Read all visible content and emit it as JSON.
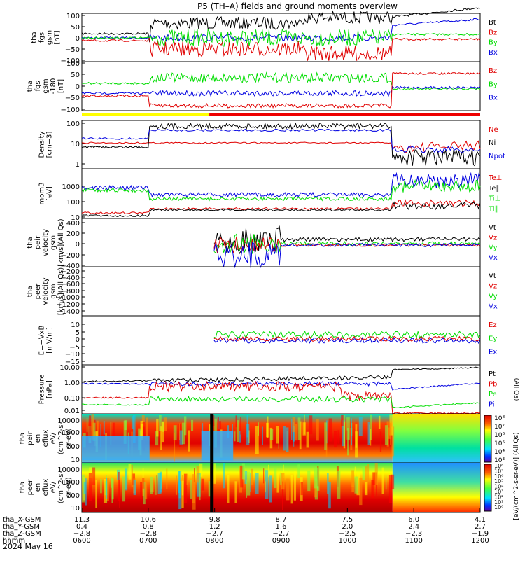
{
  "title": "P5 (TH–A) fields and ground moments overview",
  "date": "2024 May 16",
  "colors": {
    "black": "#000000",
    "red": "#e00000",
    "green": "#00dd00",
    "blue": "#0000e0",
    "yellow": "#ffff00",
    "orange": "#ff9900",
    "barRed": "#ee0000"
  },
  "chart_data": [
    {
      "type": "line",
      "id": "fgs",
      "ylabel": [
        "tha",
        "fgs",
        "gsm",
        "[nT]"
      ],
      "yticks": [
        "100",
        "50",
        "0",
        "−50",
        "−100"
      ],
      "ylim": [
        -100,
        100
      ],
      "legend": [
        {
          "label": "Bt",
          "color": "#000000"
        },
        {
          "label": "Bz",
          "color": "#e00000"
        },
        {
          "label": "By",
          "color": "#00dd00"
        },
        {
          "label": "Bx",
          "color": "#0000e0"
        }
      ]
    },
    {
      "type": "line",
      "id": "fgs180",
      "ylabel": [
        "tha",
        "fgs",
        "gsm",
        "-180",
        "[nT]"
      ],
      "yticks": [
        "100",
        "50",
        "0",
        "−50",
        "−100"
      ],
      "ylim": [
        -100,
        100
      ],
      "legend": [
        {
          "label": "Bz",
          "color": "#e00000"
        },
        {
          "label": "By",
          "color": "#00dd00"
        },
        {
          "label": "Bx",
          "color": "#0000e0"
        }
      ]
    },
    {
      "type": "line",
      "id": "density",
      "log": true,
      "ylabel": [
        "Density",
        "[cm−3]"
      ],
      "yticks": [
        "100",
        "10",
        "1"
      ],
      "legend": [
        {
          "label": "Ne",
          "color": "#e00000"
        },
        {
          "label": "Ni",
          "color": "#000000"
        },
        {
          "label": "Npot",
          "color": "#0000e0"
        }
      ]
    },
    {
      "type": "line",
      "id": "temp",
      "log": true,
      "ylabel": [
        "mom3",
        "[eV]"
      ],
      "yticks": [
        "1000",
        "100",
        "10"
      ],
      "legend": [
        {
          "label": "Te⊥",
          "color": "#e00000"
        },
        {
          "label": "Te∥",
          "color": "#000000"
        },
        {
          "label": "Ti⊥",
          "color": "#00dd00"
        },
        {
          "label": "Ti∥",
          "color": "#00dd00"
        }
      ]
    },
    {
      "type": "line",
      "id": "peir",
      "ylabel": [
        "tha",
        "peir",
        "velocity",
        "gsm",
        "[km/s](All Qs)"
      ],
      "yticks": [
        "400",
        "200",
        "0",
        "−200",
        "−400"
      ],
      "ylim": [
        -400,
        400
      ],
      "legend": [
        {
          "label": "Vt",
          "color": "#000000"
        },
        {
          "label": "Vz",
          "color": "#e00000"
        },
        {
          "label": "Vy",
          "color": "#00dd00"
        },
        {
          "label": "Vx",
          "color": "#0000e0"
        }
      ]
    },
    {
      "type": "line",
      "id": "peer",
      "ylabel": [
        "tha",
        "peer",
        "velocity",
        "gsm",
        "[km/s](All Qs)"
      ],
      "yticks": [
        "−200",
        "−400",
        "−600",
        "−800",
        "−1000",
        "−1200",
        "−1400"
      ],
      "ylim": [
        -1400,
        -200
      ],
      "legend": [
        {
          "label": "Vt",
          "color": "#000000"
        },
        {
          "label": "Vz",
          "color": "#e00000"
        },
        {
          "label": "Vy",
          "color": "#00dd00"
        },
        {
          "label": "Vx",
          "color": "#0000e0"
        }
      ]
    },
    {
      "type": "line",
      "id": "efield",
      "ylabel": [
        "E=−VxB",
        "[mV/m]"
      ],
      "yticks": [
        "10",
        "5",
        "0",
        "−5",
        "−10",
        "−15"
      ],
      "ylim": [
        -15,
        10
      ],
      "legend": [
        {
          "label": "Ez",
          "color": "#e00000"
        },
        {
          "label": "Ey",
          "color": "#00dd00"
        },
        {
          "label": "Ex",
          "color": "#0000e0"
        }
      ]
    },
    {
      "type": "line",
      "id": "pressure",
      "log": true,
      "ylabel": [
        "Pressure",
        "[nPa]"
      ],
      "yticks": [
        "10.00",
        "1.00",
        "0.10",
        "0.01"
      ],
      "legend": [
        {
          "label": "Pt",
          "color": "#000000"
        },
        {
          "label": "Pb",
          "color": "#e00000"
        },
        {
          "label": "Pe",
          "color": "#00dd00"
        },
        {
          "label": "Pi",
          "color": "#0000e0"
        }
      ],
      "legend_note": "(All Qs)"
    },
    {
      "type": "heatmap",
      "id": "peir_spec",
      "ylabel": [
        "tha",
        "peir",
        "en",
        "eflux",
        "eV/",
        "(cm^2-s-",
        "sr-eV)"
      ],
      "yticks": [
        "10000",
        "1000",
        "100",
        "10"
      ],
      "colorbar": [
        "10⁸",
        "10⁷",
        "10⁶",
        "10⁵",
        "10⁴",
        "10³"
      ]
    },
    {
      "type": "heatmap",
      "id": "peer_spec",
      "ylabel": [
        "tha",
        "peer",
        "en",
        "eflux",
        "eV/",
        "(cm^2-s-",
        "sr-eV)"
      ],
      "yticks": [
        "10000",
        "1000",
        "100",
        "10"
      ],
      "colorbar": [
        "10⁸",
        "10⁷",
        "10⁶",
        "10⁵",
        "10⁴",
        "10³",
        "10²",
        "10¹",
        "10⁰"
      ]
    }
  ],
  "colorbar_label": "[eV/(cm^2-s-sr-eV)] (All Qs)",
  "xaxis": {
    "row_labels": [
      "tha_X-GSM",
      "tha_Y-GSM",
      "tha_Z-GSM",
      "hhmm"
    ],
    "columns": [
      {
        "x": "11.3",
        "y": "0.4",
        "z": "−2.8",
        "t": "0600"
      },
      {
        "x": "10.6",
        "y": "0.8",
        "z": "−2.8",
        "t": "0700"
      },
      {
        "x": "9.8",
        "y": "1.2",
        "z": "−2.7",
        "t": "0800"
      },
      {
        "x": "8.7",
        "y": "1.6",
        "z": "−2.7",
        "t": "0900"
      },
      {
        "x": "7.5",
        "y": "2.0",
        "z": "−2.5",
        "t": "1000"
      },
      {
        "x": "6.0",
        "y": "2.4",
        "z": "−2.3",
        "t": "1100"
      },
      {
        "x": "4.1",
        "y": "2.7",
        "z": "−1.9",
        "t": "1200"
      }
    ]
  }
}
